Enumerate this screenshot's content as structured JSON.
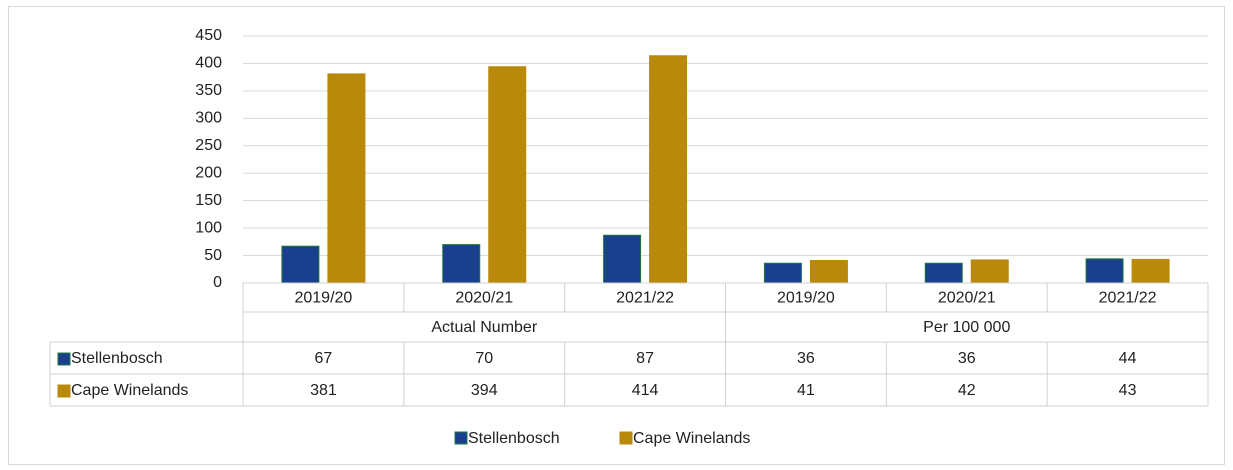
{
  "chart_data": {
    "type": "bar",
    "categories": [
      "2019/20",
      "2020/21",
      "2021/22",
      "2019/20",
      "2020/21",
      "2021/22"
    ],
    "groups": [
      "Actual Number",
      "Per 100 000"
    ],
    "series": [
      {
        "name": "Stellenbosch",
        "color": "#1b3f8f",
        "values": [
          67,
          70,
          87,
          36,
          36,
          44
        ]
      },
      {
        "name": "Cape Winelands",
        "color": "#b8890b",
        "values": [
          381,
          394,
          414,
          41,
          42,
          43
        ]
      }
    ],
    "ylim": [
      0,
      450
    ],
    "yticks": [
      0,
      50,
      100,
      150,
      200,
      250,
      300,
      350,
      400,
      450
    ],
    "grid": true,
    "legend": "bottom",
    "data_table": true
  }
}
